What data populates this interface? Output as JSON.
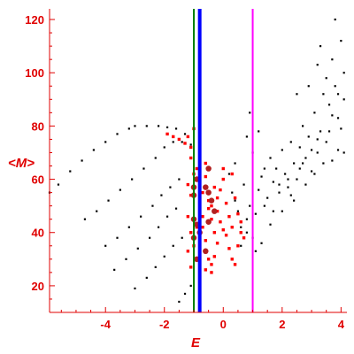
{
  "chart_data": {
    "type": "scatter",
    "title": "",
    "xlabel": "E",
    "ylabel": "<M>",
    "xlim": [
      -5.9,
      4.2
    ],
    "ylim": [
      10,
      124
    ],
    "x_ticks": [
      -4,
      -2,
      0,
      2,
      4
    ],
    "y_ticks": [
      20,
      40,
      60,
      80,
      100,
      120
    ],
    "x_tick_labels": [
      "-4",
      "-2",
      "0",
      "2",
      "4"
    ],
    "y_tick_labels": [
      "20",
      "40",
      "60",
      "80",
      "100",
      "120"
    ],
    "grid": false,
    "colors": {
      "axes": "#e00000",
      "black_points": "#000000",
      "red_points": "#ff0000",
      "large_points": "#b22020",
      "line_green": "#008000",
      "line_blue": "#0000ff",
      "line_magenta": "#ff00ff"
    },
    "vertical_lines": [
      {
        "color": "green",
        "x": -1.0
      },
      {
        "color": "blue",
        "x": -0.8
      },
      {
        "color": "magenta",
        "x": 1.0
      }
    ],
    "series": [
      {
        "color": "black",
        "points": [
          [
            -5.9,
            55
          ],
          [
            -5.6,
            58
          ],
          [
            -5.2,
            63
          ],
          [
            -4.8,
            67
          ],
          [
            -4.4,
            71
          ],
          [
            -4.0,
            74
          ],
          [
            -3.6,
            77
          ],
          [
            -3.2,
            79
          ],
          [
            -3.0,
            80
          ],
          [
            -2.6,
            80
          ],
          [
            -2.2,
            80
          ],
          [
            -1.9,
            79.5
          ],
          [
            -1.6,
            79
          ],
          [
            -1.3,
            77
          ],
          [
            -1.1,
            73
          ],
          [
            -4.7,
            45
          ],
          [
            -4.3,
            48
          ],
          [
            -3.9,
            52
          ],
          [
            -3.5,
            56
          ],
          [
            -3.1,
            60
          ],
          [
            -2.7,
            64
          ],
          [
            -2.3,
            68
          ],
          [
            -2.0,
            72
          ],
          [
            -1.7,
            74
          ],
          [
            -1.4,
            74
          ],
          [
            -4.0,
            35
          ],
          [
            -3.6,
            38
          ],
          [
            -3.2,
            42
          ],
          [
            -2.8,
            46
          ],
          [
            -2.4,
            50
          ],
          [
            -2.1,
            54
          ],
          [
            -1.8,
            57
          ],
          [
            -1.5,
            60
          ],
          [
            -3.7,
            26
          ],
          [
            -3.3,
            30
          ],
          [
            -2.9,
            34
          ],
          [
            -2.5,
            38
          ],
          [
            -2.2,
            42
          ],
          [
            -1.9,
            46
          ],
          [
            -1.6,
            49
          ],
          [
            -3.0,
            19
          ],
          [
            -2.6,
            23
          ],
          [
            -2.3,
            27
          ],
          [
            -2.0,
            31
          ],
          [
            -1.7,
            35
          ],
          [
            -1.4,
            38
          ],
          [
            -1.5,
            14
          ],
          [
            -1.3,
            17
          ],
          [
            -1.1,
            20
          ],
          [
            0.2,
            62
          ],
          [
            0.3,
            55
          ],
          [
            0.5,
            48
          ],
          [
            0.6,
            42
          ],
          [
            0.4,
            52
          ],
          [
            0.7,
            58
          ],
          [
            0.8,
            45
          ],
          [
            0.9,
            50
          ],
          [
            1.1,
            47
          ],
          [
            1.2,
            56
          ],
          [
            1.3,
            61
          ],
          [
            1.5,
            53
          ],
          [
            1.6,
            68
          ],
          [
            1.7,
            59
          ],
          [
            1.8,
            64
          ],
          [
            1.9,
            55
          ],
          [
            2.0,
            71
          ],
          [
            2.1,
            62
          ],
          [
            2.2,
            57
          ],
          [
            2.3,
            74
          ],
          [
            2.4,
            66
          ],
          [
            2.5,
            60
          ],
          [
            2.6,
            72
          ],
          [
            2.7,
            80
          ],
          [
            2.8,
            68
          ],
          [
            2.9,
            76
          ],
          [
            3.0,
            63
          ],
          [
            3.1,
            85
          ],
          [
            3.2,
            70
          ],
          [
            3.3,
            78
          ],
          [
            3.4,
            92
          ],
          [
            3.5,
            74
          ],
          [
            3.6,
            88
          ],
          [
            3.7,
            67
          ],
          [
            3.8,
            95
          ],
          [
            3.9,
            83
          ],
          [
            4.0,
            79
          ],
          [
            4.1,
            100
          ],
          [
            3.7,
            105
          ],
          [
            3.5,
            98
          ],
          [
            2.9,
            95
          ],
          [
            3.3,
            110
          ],
          [
            3.8,
            120
          ],
          [
            4.0,
            112
          ],
          [
            2.5,
            92
          ],
          [
            3.2,
            103
          ],
          [
            1.0,
            38
          ],
          [
            1.1,
            33
          ],
          [
            1.3,
            36
          ],
          [
            0.6,
            35
          ],
          [
            0.8,
            40
          ],
          [
            1.4,
            64
          ],
          [
            1.0,
            70
          ],
          [
            1.2,
            78
          ],
          [
            0.9,
            85
          ],
          [
            0.8,
            76
          ],
          [
            0.4,
            66
          ],
          [
            1.6,
            43
          ],
          [
            2.0,
            48
          ],
          [
            2.4,
            52
          ],
          [
            2.8,
            58
          ],
          [
            3.1,
            62
          ],
          [
            3.6,
            78
          ],
          [
            3.9,
            71
          ],
          [
            3.4,
            66
          ],
          [
            3.0,
            71
          ],
          [
            2.6,
            64
          ],
          [
            2.2,
            60
          ],
          [
            1.9,
            58
          ],
          [
            1.4,
            50
          ],
          [
            1.7,
            48
          ],
          [
            2.3,
            54
          ],
          [
            2.7,
            66
          ],
          [
            3.2,
            75
          ],
          [
            3.7,
            84
          ],
          [
            4.1,
            90
          ],
          [
            4.1,
            70
          ],
          [
            3.9,
            92
          ]
        ]
      },
      {
        "color": "red",
        "points": [
          [
            -1.9,
            77
          ],
          [
            -1.7,
            76
          ],
          [
            -1.5,
            75
          ],
          [
            -1.3,
            73.5
          ],
          [
            -1.1,
            72
          ],
          [
            -1.2,
            76
          ],
          [
            -1.0,
            79
          ],
          [
            -1.1,
            68
          ],
          [
            -1.0,
            62
          ],
          [
            -1.2,
            58
          ],
          [
            -1.1,
            54
          ],
          [
            -1.2,
            46
          ],
          [
            -1.1,
            40
          ],
          [
            -1.2,
            33
          ],
          [
            -1.1,
            27
          ],
          [
            -0.9,
            64
          ],
          [
            -0.8,
            59
          ],
          [
            -0.7,
            55
          ],
          [
            -0.6,
            61
          ],
          [
            -0.5,
            52
          ],
          [
            -0.4,
            50
          ],
          [
            -0.3,
            57
          ],
          [
            -0.2,
            48
          ],
          [
            -0.1,
            44
          ],
          [
            0.0,
            60
          ],
          [
            0.1,
            51
          ],
          [
            0.2,
            46
          ],
          [
            0.3,
            42
          ],
          [
            0.4,
            53
          ],
          [
            0.5,
            47
          ],
          [
            -0.6,
            66
          ],
          [
            -0.5,
            64
          ],
          [
            -0.4,
            45
          ],
          [
            -0.3,
            40
          ],
          [
            -0.2,
            36
          ],
          [
            -0.5,
            30
          ],
          [
            -0.4,
            28
          ],
          [
            -0.3,
            31
          ],
          [
            -0.6,
            37
          ],
          [
            -0.7,
            42
          ],
          [
            -0.8,
            48
          ],
          [
            0.1,
            39
          ],
          [
            0.2,
            34
          ],
          [
            0.3,
            30
          ],
          [
            0.5,
            35
          ],
          [
            0.6,
            40
          ],
          [
            0.0,
            64
          ],
          [
            -0.1,
            56
          ],
          [
            0.3,
            62
          ],
          [
            0.6,
            44
          ],
          [
            0.7,
            38
          ],
          [
            -0.4,
            25
          ],
          [
            -0.6,
            26
          ],
          [
            0.4,
            28
          ],
          [
            -1.0,
            35
          ],
          [
            -0.9,
            42
          ],
          [
            -0.8,
            51
          ],
          [
            -0.7,
            46
          ],
          [
            -0.5,
            49
          ],
          [
            -0.2,
            53
          ],
          [
            0.0,
            41
          ]
        ]
      },
      {
        "color": "darkred-large",
        "points": [
          [
            -1.0,
            54
          ],
          [
            -1.0,
            57
          ],
          [
            -0.9,
            60
          ],
          [
            -1.0,
            45
          ],
          [
            -0.9,
            43
          ],
          [
            -1.0,
            38
          ],
          [
            -0.9,
            30
          ],
          [
            -0.5,
            64
          ],
          [
            -0.4,
            52
          ],
          [
            -0.6,
            57
          ],
          [
            -0.5,
            55
          ],
          [
            -0.3,
            48
          ],
          [
            -0.6,
            33
          ],
          [
            -0.5,
            44
          ],
          [
            -0.8,
            40
          ]
        ]
      }
    ]
  }
}
